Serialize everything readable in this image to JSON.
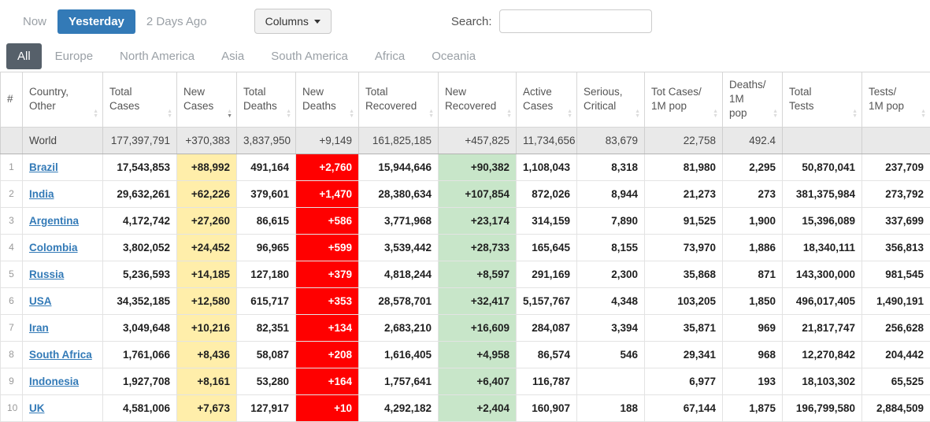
{
  "toolbar": {
    "time_buttons": [
      {
        "label": "Now",
        "active": false
      },
      {
        "label": "Yesterday",
        "active": true
      },
      {
        "label": "2 Days Ago",
        "active": false
      }
    ],
    "columns_button": "Columns",
    "search_label": "Search:",
    "search_value": "",
    "search_placeholder": ""
  },
  "tabs": [
    {
      "label": "All",
      "active": true
    },
    {
      "label": "Europe",
      "active": false
    },
    {
      "label": "North America",
      "active": false
    },
    {
      "label": "Asia",
      "active": false
    },
    {
      "label": "South America",
      "active": false
    },
    {
      "label": "Africa",
      "active": false
    },
    {
      "label": "Oceania",
      "active": false
    }
  ],
  "table": {
    "headers": [
      {
        "label": "#",
        "sort": "none"
      },
      {
        "label": "Country,\nOther",
        "sort": "both"
      },
      {
        "label": "Total\nCases",
        "sort": "both"
      },
      {
        "label": "New\nCases",
        "sort": "desc"
      },
      {
        "label": "Total\nDeaths",
        "sort": "both"
      },
      {
        "label": "New\nDeaths",
        "sort": "both"
      },
      {
        "label": "Total\nRecovered",
        "sort": "both"
      },
      {
        "label": "New\nRecovered",
        "sort": "both"
      },
      {
        "label": "Active\nCases",
        "sort": "both"
      },
      {
        "label": "Serious,\nCritical",
        "sort": "both"
      },
      {
        "label": "Tot Cases/\n1M pop",
        "sort": "both"
      },
      {
        "label": "Deaths/\n1M pop",
        "sort": "both"
      },
      {
        "label": "Total\nTests",
        "sort": "both"
      },
      {
        "label": "Tests/\n1M pop",
        "sort": "both"
      }
    ],
    "world_row": {
      "rank": "",
      "country": "World",
      "total_cases": "177,397,791",
      "new_cases": "+370,383",
      "total_deaths": "3,837,950",
      "new_deaths": "+9,149",
      "total_recovered": "161,825,185",
      "new_recovered": "+457,825",
      "active_cases": "11,734,656",
      "serious_critical": "83,679",
      "tot_cases_1m": "22,758",
      "deaths_1m": "492.4",
      "total_tests": "",
      "tests_1m": ""
    },
    "rows": [
      {
        "rank": "1",
        "country": "Brazil",
        "total_cases": "17,543,853",
        "new_cases": "+88,992",
        "total_deaths": "491,164",
        "new_deaths": "+2,760",
        "total_recovered": "15,944,646",
        "new_recovered": "+90,382",
        "active_cases": "1,108,043",
        "serious_critical": "8,318",
        "tot_cases_1m": "81,980",
        "deaths_1m": "2,295",
        "total_tests": "50,870,041",
        "tests_1m": "237,709"
      },
      {
        "rank": "2",
        "country": "India",
        "total_cases": "29,632,261",
        "new_cases": "+62,226",
        "total_deaths": "379,601",
        "new_deaths": "+1,470",
        "total_recovered": "28,380,634",
        "new_recovered": "+107,854",
        "active_cases": "872,026",
        "serious_critical": "8,944",
        "tot_cases_1m": "21,273",
        "deaths_1m": "273",
        "total_tests": "381,375,984",
        "tests_1m": "273,792"
      },
      {
        "rank": "3",
        "country": "Argentina",
        "total_cases": "4,172,742",
        "new_cases": "+27,260",
        "total_deaths": "86,615",
        "new_deaths": "+586",
        "total_recovered": "3,771,968",
        "new_recovered": "+23,174",
        "active_cases": "314,159",
        "serious_critical": "7,890",
        "tot_cases_1m": "91,525",
        "deaths_1m": "1,900",
        "total_tests": "15,396,089",
        "tests_1m": "337,699"
      },
      {
        "rank": "4",
        "country": "Colombia",
        "total_cases": "3,802,052",
        "new_cases": "+24,452",
        "total_deaths": "96,965",
        "new_deaths": "+599",
        "total_recovered": "3,539,442",
        "new_recovered": "+28,733",
        "active_cases": "165,645",
        "serious_critical": "8,155",
        "tot_cases_1m": "73,970",
        "deaths_1m": "1,886",
        "total_tests": "18,340,111",
        "tests_1m": "356,813"
      },
      {
        "rank": "5",
        "country": "Russia",
        "total_cases": "5,236,593",
        "new_cases": "+14,185",
        "total_deaths": "127,180",
        "new_deaths": "+379",
        "total_recovered": "4,818,244",
        "new_recovered": "+8,597",
        "active_cases": "291,169",
        "serious_critical": "2,300",
        "tot_cases_1m": "35,868",
        "deaths_1m": "871",
        "total_tests": "143,300,000",
        "tests_1m": "981,545"
      },
      {
        "rank": "6",
        "country": "USA",
        "total_cases": "34,352,185",
        "new_cases": "+12,580",
        "total_deaths": "615,717",
        "new_deaths": "+353",
        "total_recovered": "28,578,701",
        "new_recovered": "+32,417",
        "active_cases": "5,157,767",
        "serious_critical": "4,348",
        "tot_cases_1m": "103,205",
        "deaths_1m": "1,850",
        "total_tests": "496,017,405",
        "tests_1m": "1,490,191"
      },
      {
        "rank": "7",
        "country": "Iran",
        "total_cases": "3,049,648",
        "new_cases": "+10,216",
        "total_deaths": "82,351",
        "new_deaths": "+134",
        "total_recovered": "2,683,210",
        "new_recovered": "+16,609",
        "active_cases": "284,087",
        "serious_critical": "3,394",
        "tot_cases_1m": "35,871",
        "deaths_1m": "969",
        "total_tests": "21,817,747",
        "tests_1m": "256,628"
      },
      {
        "rank": "8",
        "country": "South Africa",
        "total_cases": "1,761,066",
        "new_cases": "+8,436",
        "total_deaths": "58,087",
        "new_deaths": "+208",
        "total_recovered": "1,616,405",
        "new_recovered": "+4,958",
        "active_cases": "86,574",
        "serious_critical": "546",
        "tot_cases_1m": "29,341",
        "deaths_1m": "968",
        "total_tests": "12,270,842",
        "tests_1m": "204,442"
      },
      {
        "rank": "9",
        "country": "Indonesia",
        "total_cases": "1,927,708",
        "new_cases": "+8,161",
        "total_deaths": "53,280",
        "new_deaths": "+164",
        "total_recovered": "1,757,641",
        "new_recovered": "+6,407",
        "active_cases": "116,787",
        "serious_critical": "",
        "tot_cases_1m": "6,977",
        "deaths_1m": "193",
        "total_tests": "18,103,302",
        "tests_1m": "65,525"
      },
      {
        "rank": "10",
        "country": "UK",
        "total_cases": "4,581,006",
        "new_cases": "+7,673",
        "total_deaths": "127,917",
        "new_deaths": "+10",
        "total_recovered": "4,292,182",
        "new_recovered": "+2,404",
        "active_cases": "160,907",
        "serious_critical": "188",
        "tot_cases_1m": "67,144",
        "deaths_1m": "1,875",
        "total_tests": "196,799,580",
        "tests_1m": "2,884,509"
      }
    ]
  },
  "colors": {
    "accent_blue": "#337AB7",
    "active_tab_bg": "#56606A",
    "new_cases_bg": "#FFEEAA",
    "new_deaths_bg": "#FF0000",
    "new_recovered_bg": "#C8E6C9",
    "world_row_bg": "#E9E9E9"
  }
}
